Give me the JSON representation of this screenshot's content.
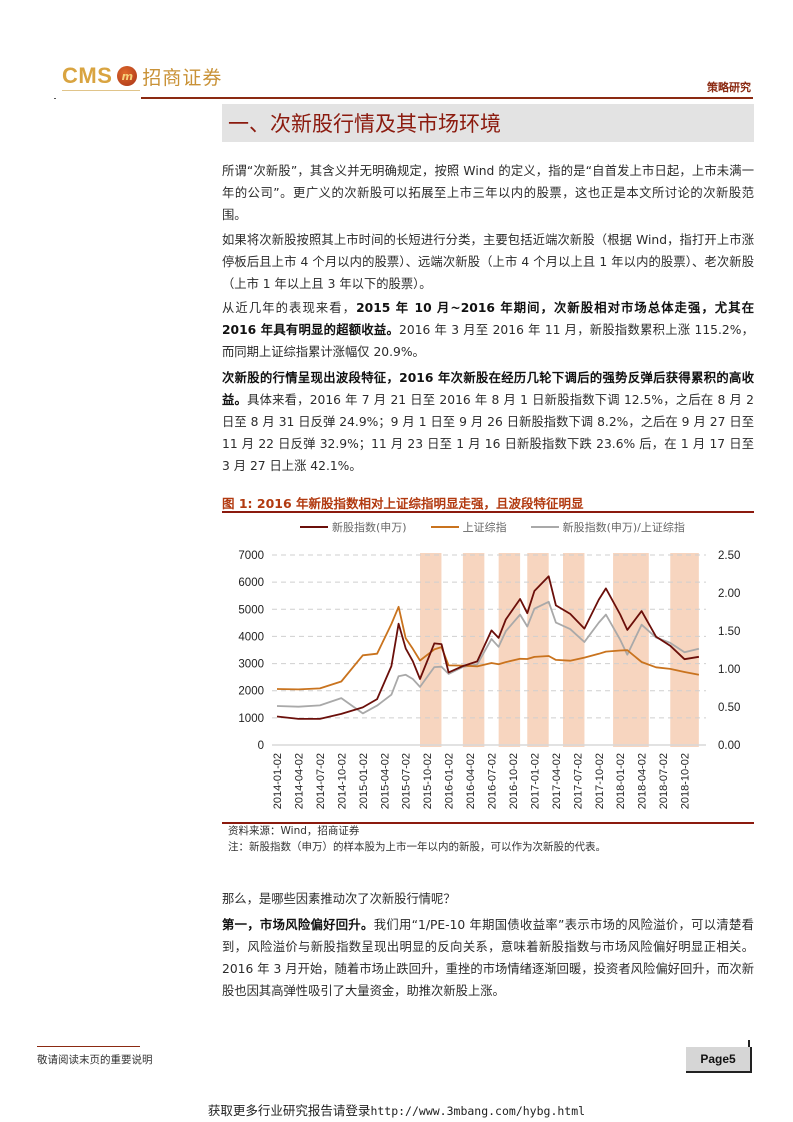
{
  "header": {
    "logo_text": "CMS",
    "logo_badge": "m",
    "logo_cn": "招商证券",
    "section_tag": "策略研究"
  },
  "section": {
    "title": "一、次新股行情及其市场环境"
  },
  "paragraphs": {
    "p1": "所谓“次新股”，其含义并无明确规定，按照 Wind 的定义，指的是“自首发上市日起，上市未满一年的公司”。更广义的次新股可以拓展至上市三年以内的股票，这也正是本文所讨论的次新股范围。",
    "p2": "如果将次新股按照其上市时间的长短进行分类，主要包括近端次新股（根据 Wind，指打开上市涨停板后且上市 4 个月以内的股票）、远端次新股（上市 4 个月以上且 1 年以内的股票）、老次新股（上市 1 年以上且 3 年以下的股票）。",
    "p3_lead": "从近几年的表现来看，",
    "p3_bold": "2015 年 10 月~2016 年期间，次新股相对市场总体走强，尤其在 2016 年具有明显的超额收益。",
    "p3_rest": "2016 年 3 月至 2016 年 11 月，新股指数累积上涨 115.2%，而同期上证综指累计涨幅仅 20.9%。",
    "p4_bold": "次新股的行情呈现出波段特征，2016 年次新股在经历几轮下调后的强势反弹后获得累积的高收益。",
    "p4_rest": "具体来看，2016 年 7 月 21 日至 2016 年 8 月 1 日新股指数下调 12.5%，之后在 8 月 2 日至 8 月 31 日反弹 24.9%；9 月 1 日至 9 月 26 日新股指数下调 8.2%，之后在 9 月 27 日至 11 月 22 日反弹 32.9%；11 月 23 日至 1 月 16 日新股指数下跌 23.6% 后，在 1 月 17 日至 3 月 27 日上涨 42.1%。",
    "p5": "那么，是哪些因素推动次了次新股行情呢？",
    "p6_bold": "第一，市场风险偏好回升。",
    "p6_rest": "我们用“1/PE-10 年期国债收益率”表示市场的风险溢价，可以清楚看到，风险溢价与新股指数呈现出明显的反向关系，意味着新股指数与市场风险偏好明显正相关。2016 年 3 月开始，随着市场止跌回升，重挫的市场情绪逐渐回暖，投资者风险偏好回升，而次新股也因其高弹性吸引了大量资金，助推次新股上涨。"
  },
  "figure": {
    "title": "图 1:   2016 年新股指数相对上证综指明显走强，且波段特征明显",
    "source": "资料来源：Wind，招商证券",
    "note": "注：新股指数（申万）的样本股为上市一年以内的新股，可以作为次新股的代表。"
  },
  "footer": {
    "note": "敬请阅读末页的重要说明",
    "page": "Page5",
    "promo_text": "获取更多行业研究报告请登录",
    "promo_url": "http://www.3mbang.com/hybg.html"
  },
  "colors": {
    "accent": "#8b1a0e",
    "series_new_stock": "#6b0f0a",
    "series_sse": "#c9731e",
    "series_ratio": "#a9a9a9",
    "band": "#f7d5bf"
  },
  "chart_data": {
    "type": "line",
    "title": "2016 年新股指数相对上证综指明显走强，且波段特征明显",
    "xlabel": "",
    "ylabel_left": "",
    "ylabel_right": "",
    "ylim_left": [
      0,
      7000
    ],
    "ylim_right": [
      0.0,
      2.5
    ],
    "yticks_left": [
      "7000",
      "6000",
      "5000",
      "4000",
      "3000",
      "2000",
      "1000",
      "0"
    ],
    "yticks_right": [
      "2.50",
      "2.00",
      "1.50",
      "1.00",
      "0.50",
      "0.00"
    ],
    "x_ticks": [
      "2014-01-02",
      "2014-04-02",
      "2014-07-02",
      "2014-10-02",
      "2015-01-02",
      "2015-04-02",
      "2015-07-02",
      "2015-10-02",
      "2016-01-02",
      "2016-04-02",
      "2016-07-02",
      "2016-10-02",
      "2017-01-02",
      "2017-04-02",
      "2017-07-02",
      "2017-10-02",
      "2018-01-02",
      "2018-04-02",
      "2018-07-02",
      "2018-10-02"
    ],
    "grid": "horizontal dashed",
    "legend_position": "top",
    "x": [
      "2014-01",
      "2014-04",
      "2014-07",
      "2014-10",
      "2015-01",
      "2015-03",
      "2015-05",
      "2015-06",
      "2015-07",
      "2015-08",
      "2015-09",
      "2015-11",
      "2015-12",
      "2016-01",
      "2016-03",
      "2016-05",
      "2016-07",
      "2016-08",
      "2016-09",
      "2016-11",
      "2016-12",
      "2017-01",
      "2017-03",
      "2017-04",
      "2017-06",
      "2017-08",
      "2017-10",
      "2017-11",
      "2018-01",
      "2018-02",
      "2018-04",
      "2018-06",
      "2018-08",
      "2018-10",
      "2018-12"
    ],
    "series": [
      {
        "name": "新股指数(申万)",
        "axis": "left",
        "values": [
          1050,
          1000,
          1000,
          1150,
          1350,
          1650,
          2900,
          4500,
          3600,
          3100,
          2400,
          3700,
          3700,
          2700,
          2950,
          3100,
          4200,
          3900,
          4600,
          5400,
          4900,
          5700,
          6200,
          5100,
          4800,
          4300,
          5400,
          5800,
          4800,
          4200,
          4900,
          4000,
          3700,
          3200,
          3250
        ]
      },
      {
        "name": "上证综指",
        "axis": "left",
        "values": [
          2100,
          2050,
          2050,
          2300,
          3300,
          3400,
          4500,
          5100,
          3900,
          3500,
          3100,
          3550,
          3650,
          2950,
          2900,
          2850,
          3000,
          3000,
          3100,
          3200,
          3150,
          3200,
          3250,
          3150,
          3150,
          3250,
          3350,
          3400,
          3450,
          3500,
          3100,
          2900,
          2800,
          2650,
          2550
        ]
      },
      {
        "name": "新股指数(申万)/上证综指",
        "axis": "right",
        "values": [
          0.5,
          0.49,
          0.52,
          0.63,
          0.43,
          0.52,
          0.65,
          0.89,
          0.92,
          0.88,
          0.78,
          1.03,
          1.02,
          0.92,
          1.02,
          1.07,
          1.41,
          1.3,
          1.49,
          1.7,
          1.55,
          1.8,
          1.9,
          1.62,
          1.52,
          1.34,
          1.6,
          1.72,
          1.4,
          1.2,
          1.58,
          1.4,
          1.33,
          1.22,
          1.28
        ]
      }
    ],
    "shaded_periods_approx": [
      [
        "2015-09",
        "2015-12"
      ],
      [
        "2016-03",
        "2016-06"
      ],
      [
        "2016-08",
        "2016-11"
      ],
      [
        "2016-12",
        "2017-03"
      ],
      [
        "2017-05",
        "2017-08"
      ],
      [
        "2017-12",
        "2018-05"
      ],
      [
        "2018-08",
        "2018-12"
      ]
    ]
  }
}
